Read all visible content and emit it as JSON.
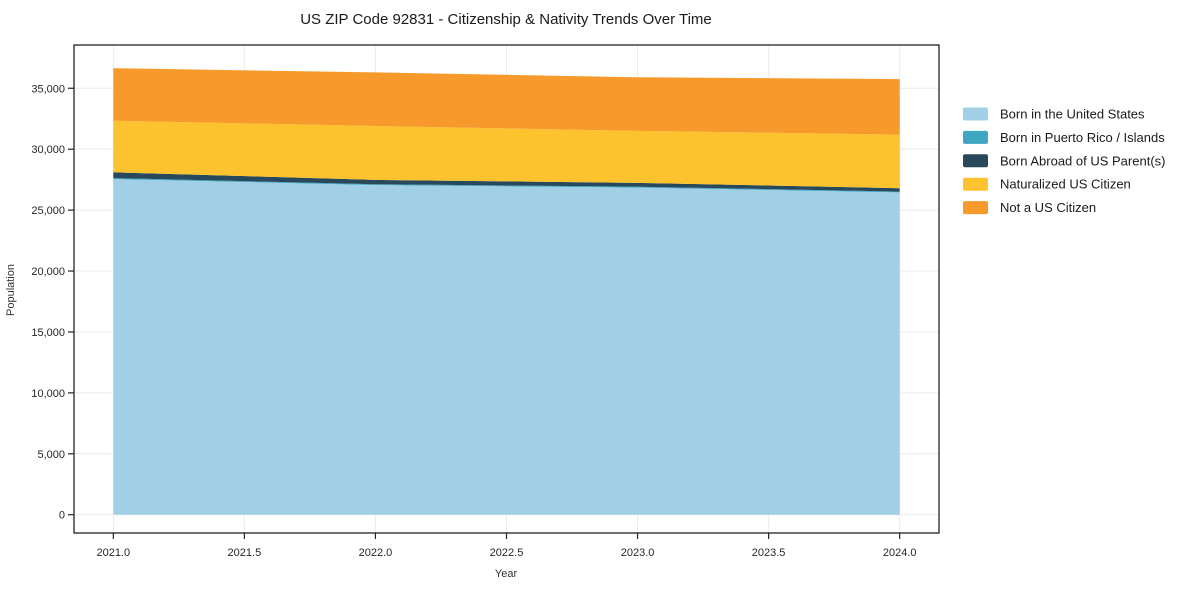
{
  "title": "US ZIP Code 92831 - Citizenship & Nativity Trends Over Time",
  "chart_data": {
    "type": "area",
    "stacked": true,
    "title": "US ZIP Code 92831 - Citizenship & Nativity Trends Over Time",
    "xlabel": "Year",
    "ylabel": "Population",
    "x": [
      2021,
      2022,
      2023,
      2024
    ],
    "series": [
      {
        "name": "Born in the United States",
        "color": "#a1d0e6",
        "values": [
          27550,
          27050,
          26850,
          26450
        ]
      },
      {
        "name": "Born in Puerto Rico / Islands",
        "color": "#3fa6c1",
        "values": [
          80,
          80,
          70,
          70
        ]
      },
      {
        "name": "Born Abroad of US Parent(s)",
        "color": "#28495c",
        "values": [
          470,
          350,
          310,
          280
        ]
      },
      {
        "name": "Naturalized US Citizen",
        "color": "#fdc32f",
        "values": [
          4240,
          4420,
          4270,
          4400
        ]
      },
      {
        "name": "Not a US Citizen",
        "color": "#f8992b",
        "values": [
          4310,
          4400,
          4400,
          4550
        ]
      }
    ],
    "totals": [
      36650,
      36300,
      35900,
      35750
    ],
    "x_tick_labels": [
      "2021.0",
      "2021.5",
      "2022.0",
      "2022.5",
      "2023.0",
      "2023.5",
      "2024.0"
    ],
    "x_tick_values": [
      2021,
      2021.5,
      2022,
      2022.5,
      2023,
      2023.5,
      2024
    ],
    "y_tick_labels": [
      "0",
      "5,000",
      "10,000",
      "15,000",
      "20,000",
      "25,000",
      "30,000",
      "35,000"
    ],
    "y_tick_values": [
      0,
      5000,
      10000,
      15000,
      20000,
      25000,
      30000,
      35000
    ],
    "xlim": [
      2020.85,
      2024.15
    ],
    "ylim": [
      -1500,
      38550
    ],
    "grid": true,
    "legend_position": "right",
    "colors": {
      "spine": "#222222",
      "gridline": "#ebebeb",
      "background": "#ffffff"
    }
  }
}
